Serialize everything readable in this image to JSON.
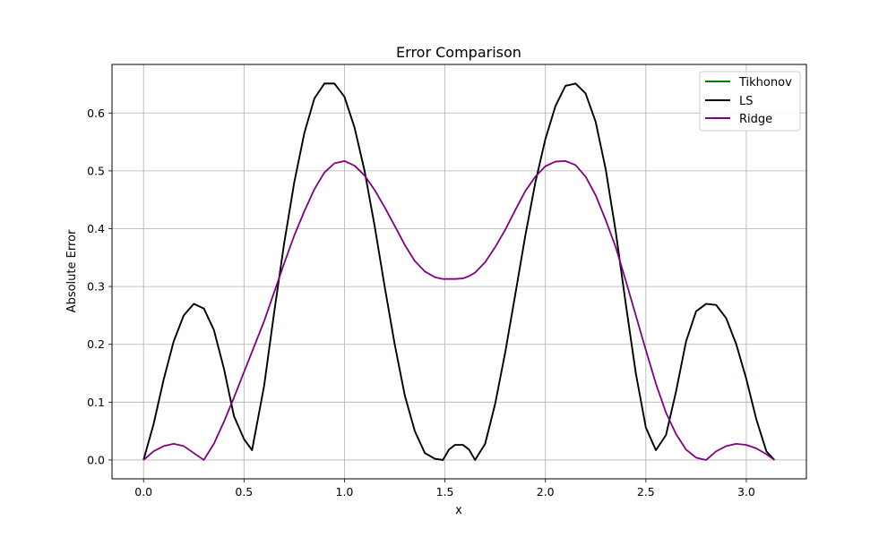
{
  "chart_data": {
    "type": "line",
    "title": "Error Comparison",
    "xlabel": "x",
    "ylabel": "Absolute Error",
    "xlim": [
      -0.157,
      3.299
    ],
    "ylim": [
      -0.0326,
      0.684
    ],
    "xticks": [
      "0.0",
      "0.5",
      "1.0",
      "1.5",
      "2.0",
      "2.5",
      "3.0"
    ],
    "xtick_values": [
      0,
      0.5,
      1,
      1.5,
      2,
      2.5,
      3
    ],
    "yticks": [
      "0.0",
      "0.1",
      "0.2",
      "0.3",
      "0.4",
      "0.5",
      "0.6"
    ],
    "ytick_values": [
      0,
      0.1,
      0.2,
      0.3,
      0.4,
      0.5,
      0.6
    ],
    "grid": true,
    "legend_position": "top-right",
    "x": [
      0,
      0.05,
      0.1,
      0.15,
      0.2,
      0.25,
      0.3,
      0.35,
      0.4,
      0.45,
      0.5,
      0.54,
      0.6,
      0.65,
      0.7,
      0.75,
      0.8,
      0.85,
      0.9,
      0.95,
      1.0,
      1.05,
      1.1,
      1.15,
      1.2,
      1.25,
      1.3,
      1.35,
      1.4,
      1.45,
      1.49,
      1.52,
      1.55,
      1.59,
      1.62,
      1.65,
      1.7,
      1.75,
      1.8,
      1.85,
      1.9,
      1.95,
      2.0,
      2.05,
      2.1,
      2.15,
      2.2,
      2.25,
      2.3,
      2.35,
      2.4,
      2.45,
      2.5,
      2.55,
      2.6,
      2.65,
      2.7,
      2.75,
      2.8,
      2.85,
      2.9,
      2.95,
      3.0,
      3.05,
      3.1,
      3.14
    ],
    "series": [
      {
        "name": "Tikhonov",
        "color": "#008000",
        "values": [
          0,
          0.062,
          0.139,
          0.205,
          0.25,
          0.27,
          0.262,
          0.225,
          0.158,
          0.076,
          0.036,
          0.017,
          0.128,
          0.255,
          0.375,
          0.48,
          0.565,
          0.625,
          0.651,
          0.651,
          0.628,
          0.575,
          0.5,
          0.405,
          0.3,
          0.2,
          0.112,
          0.05,
          0.012,
          0.002,
          0.0,
          0.018,
          0.026,
          0.026,
          0.018,
          0.0,
          0.028,
          0.097,
          0.186,
          0.286,
          0.388,
          0.48,
          0.555,
          0.612,
          0.647,
          0.651,
          0.634,
          0.585,
          0.503,
          0.395,
          0.27,
          0.15,
          0.056,
          0.017,
          0.043,
          0.118,
          0.205,
          0.257,
          0.27,
          0.268,
          0.245,
          0.2,
          0.14,
          0.07,
          0.015,
          0.0
        ]
      },
      {
        "name": "LS",
        "color": "#000000",
        "values": [
          0,
          0.062,
          0.139,
          0.205,
          0.25,
          0.27,
          0.262,
          0.225,
          0.158,
          0.076,
          0.036,
          0.017,
          0.128,
          0.255,
          0.375,
          0.48,
          0.565,
          0.625,
          0.651,
          0.651,
          0.628,
          0.575,
          0.5,
          0.405,
          0.3,
          0.2,
          0.112,
          0.05,
          0.012,
          0.002,
          0.0,
          0.018,
          0.026,
          0.026,
          0.018,
          0.0,
          0.028,
          0.097,
          0.186,
          0.286,
          0.388,
          0.48,
          0.555,
          0.612,
          0.647,
          0.651,
          0.634,
          0.585,
          0.503,
          0.395,
          0.27,
          0.15,
          0.056,
          0.017,
          0.043,
          0.118,
          0.205,
          0.257,
          0.27,
          0.268,
          0.245,
          0.2,
          0.14,
          0.07,
          0.015,
          0.0
        ]
      },
      {
        "name": "Ridge",
        "color": "#800080",
        "values": [
          0,
          0.015,
          0.024,
          0.028,
          0.024,
          0.012,
          0.0,
          0.028,
          0.066,
          0.108,
          0.152,
          0.187,
          0.24,
          0.29,
          0.34,
          0.388,
          0.43,
          0.468,
          0.497,
          0.513,
          0.517,
          0.509,
          0.492,
          0.467,
          0.437,
          0.405,
          0.372,
          0.344,
          0.326,
          0.316,
          0.313,
          0.313,
          0.313,
          0.314,
          0.318,
          0.324,
          0.342,
          0.368,
          0.398,
          0.432,
          0.465,
          0.49,
          0.508,
          0.516,
          0.517,
          0.51,
          0.49,
          0.458,
          0.415,
          0.368,
          0.31,
          0.25,
          0.19,
          0.132,
          0.082,
          0.045,
          0.018,
          0.004,
          0.0,
          0.015,
          0.024,
          0.028,
          0.026,
          0.02,
          0.01,
          0.0
        ]
      }
    ]
  }
}
